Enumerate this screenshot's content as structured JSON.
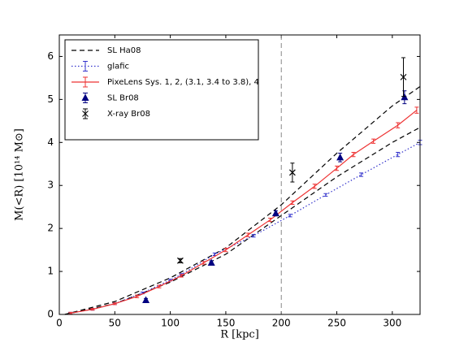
{
  "chart_data": {
    "type": "line",
    "xlabel": "R [kpc]",
    "ylabel": "M(<R) [10¹⁴ M⊙]",
    "xlim": [
      0,
      325
    ],
    "ylim": [
      0,
      6.5
    ],
    "xticks": [
      0,
      50,
      100,
      150,
      200,
      250,
      300
    ],
    "yticks": [
      0,
      1,
      2,
      3,
      4,
      5,
      6
    ],
    "vlines": [
      200
    ],
    "vline_color": "#888888",
    "legend": "upper left",
    "series": [
      {
        "name": "SL Ha08",
        "color": "#000000",
        "style": "dashed",
        "x": [
          5,
          50,
          100,
          150,
          200,
          250,
          300,
          325
        ],
        "values": [
          0,
          0.3,
          0.85,
          1.55,
          2.55,
          3.75,
          4.85,
          5.3
        ],
        "lower": [
          0,
          0.25,
          0.75,
          1.4,
          2.3,
          3.2,
          4.0,
          4.35
        ]
      },
      {
        "name": "glafic",
        "color": "#3333cc",
        "style": "dotted",
        "x": [
          10,
          30,
          50,
          75,
          100,
          110,
          140,
          175,
          208,
          240,
          272,
          305,
          325
        ],
        "values": [
          0.03,
          0.12,
          0.25,
          0.5,
          0.8,
          0.93,
          1.4,
          1.83,
          2.3,
          2.78,
          3.25,
          3.72,
          4.0
        ],
        "errors": [
          0.02,
          0.02,
          0.02,
          0.02,
          0.02,
          0.02,
          0.03,
          0.03,
          0.03,
          0.03,
          0.04,
          0.05,
          0.05
        ]
      },
      {
        "name": "PixeLens Sys. 1, 2, (3.1, 3.4 to 3.8), 4",
        "color": "#ee3333",
        "style": "solid",
        "x": [
          10,
          30,
          50,
          70,
          90,
          110,
          130,
          150,
          170,
          190,
          210,
          230,
          250,
          265,
          283,
          305,
          322
        ],
        "values": [
          0.03,
          0.12,
          0.25,
          0.42,
          0.65,
          0.9,
          1.2,
          1.5,
          1.85,
          2.2,
          2.6,
          2.98,
          3.4,
          3.72,
          4.03,
          4.4,
          4.75
        ],
        "errors": [
          0.02,
          0.02,
          0.02,
          0.03,
          0.03,
          0.03,
          0.03,
          0.04,
          0.04,
          0.04,
          0.04,
          0.05,
          0.05,
          0.05,
          0.05,
          0.06,
          0.07
        ]
      },
      {
        "name": "SL Br08",
        "color": "#000080",
        "style": "none",
        "marker": "triangle",
        "x": [
          78,
          137,
          195,
          253,
          311
        ],
        "values": [
          0.33,
          1.2,
          2.35,
          3.65,
          5.05
        ],
        "errors": [
          0.04,
          0.05,
          0.06,
          0.1,
          0.15
        ]
      },
      {
        "name": "X-ray Br08",
        "color": "#000000",
        "style": "none",
        "marker": "x",
        "x": [
          109,
          210,
          310
        ],
        "values": [
          1.25,
          3.3,
          5.52
        ],
        "errors": [
          0.05,
          0.22,
          0.45
        ]
      }
    ]
  }
}
